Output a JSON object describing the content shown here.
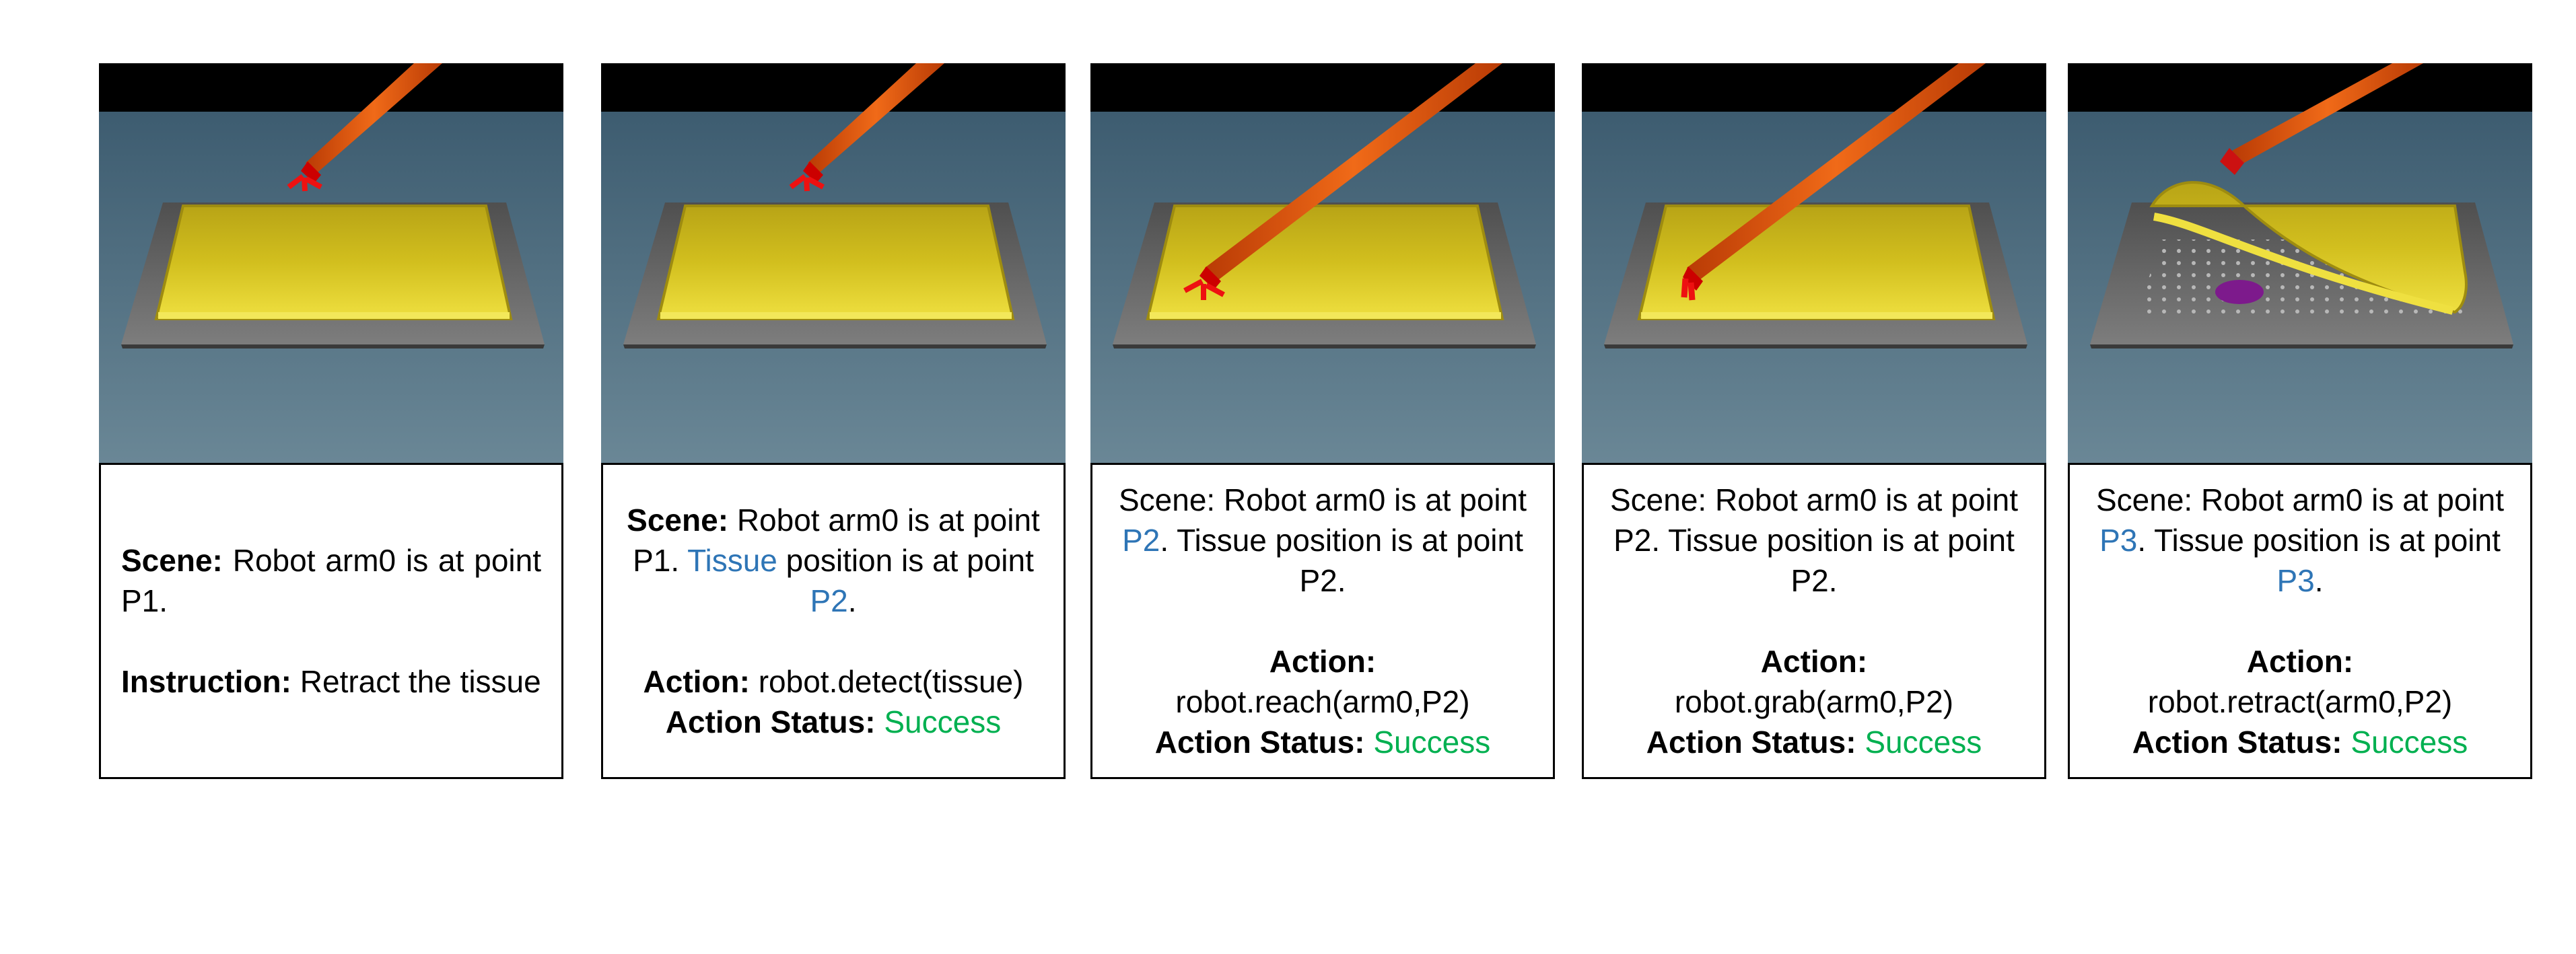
{
  "colors": {
    "highlight": "#2e75b6",
    "success": "#00b050",
    "tissue": "#d4c21b",
    "arm": "#e0570f"
  },
  "panels": [
    {
      "scene_label": "Scene:",
      "scene_text": "Robot arm0 is at point P1.",
      "instruction_label": "Instruction:",
      "instruction_text": "Retract the tissue"
    },
    {
      "scene_label": "Scene:",
      "scene_t1": "Robot arm0 is at point P1.",
      "scene_hl1": "Tissue",
      "scene_t2": "position is at point",
      "scene_hl2": "P2",
      "scene_t3": ".",
      "action_label": "Action:",
      "action_text": "robot.detect(tissue)",
      "status_label": "Action Status:",
      "status_text": "Success"
    },
    {
      "scene_t1": "Scene: Robot arm0 is at point",
      "scene_hl1": "P2",
      "scene_t2": ". Tissue position is at point P2.",
      "action_label": "Action:",
      "action_text": "robot.reach(arm0,P2)",
      "status_label": "Action Status:",
      "status_text": "Success"
    },
    {
      "scene_text": "Scene: Robot arm0 is at point P2. Tissue position is at point P2.",
      "action_label": "Action:",
      "action_text": "robot.grab(arm0,P2)",
      "status_label": "Action Status:",
      "status_text": "Success"
    },
    {
      "scene_t1": "Scene: Robot arm0 is at point",
      "scene_hl1": "P3",
      "scene_t2": ". Tissue position is at point",
      "scene_hl2": "P3",
      "scene_t3": ".",
      "action_label": "Action:",
      "action_text": "robot.retract(arm0,P2)",
      "status_label": "Action Status:",
      "status_text": "Success"
    }
  ]
}
